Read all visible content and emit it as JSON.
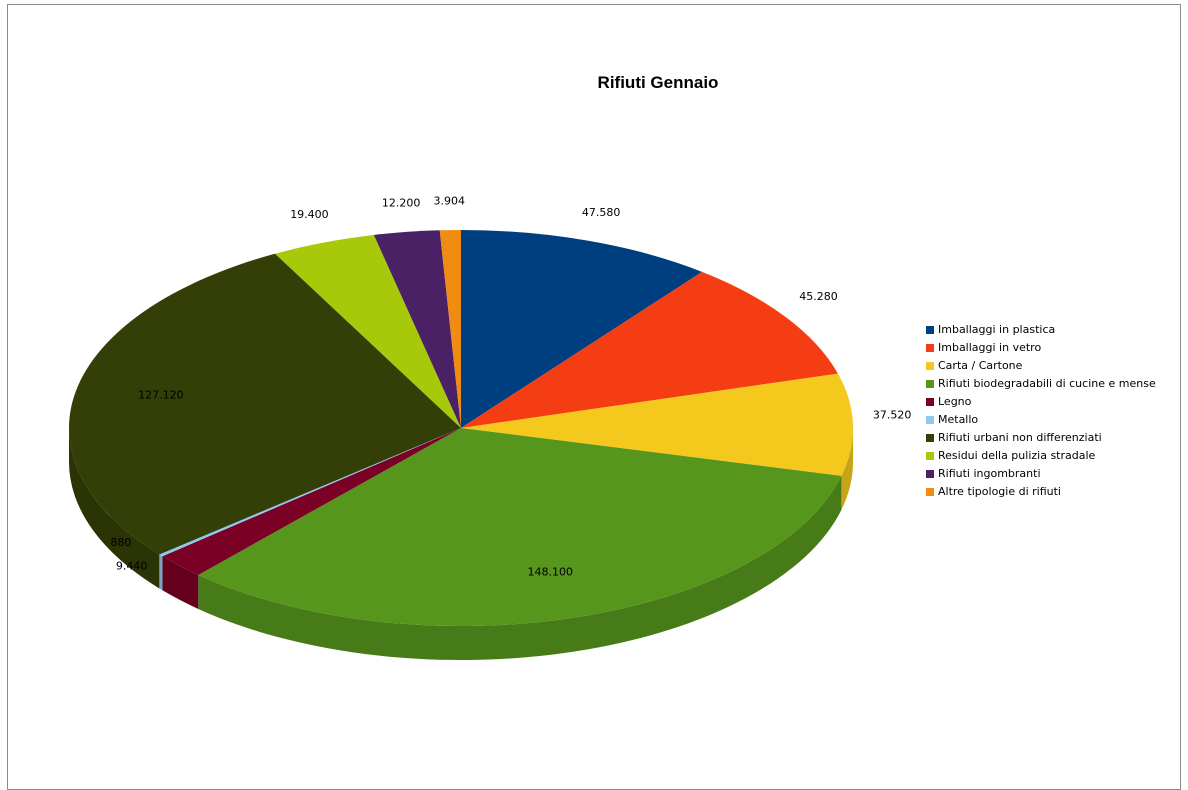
{
  "chart_data": {
    "type": "pie",
    "title": "Rifiuti Gennaio",
    "legend_position": "right",
    "slices": [
      {
        "label": "Imballaggi in plastica",
        "value": 47580,
        "value_label": "47.580",
        "color": "#003f7f"
      },
      {
        "label": "Imballaggi in vetro",
        "value": 45280,
        "value_label": "45.280",
        "color": "#f43d12"
      },
      {
        "label": "Carta / Cartone",
        "value": 37520,
        "value_label": "37.520",
        "color": "#f4c81d"
      },
      {
        "label": "Rifiuti biodegradabili di cucine e mense",
        "value": 148100,
        "value_label": "148.100",
        "color": "#57961d"
      },
      {
        "label": "Legno",
        "value": 9440,
        "value_label": "9.440",
        "color": "#7a0025"
      },
      {
        "label": "Metallo",
        "value": 880,
        "value_label": "880",
        "color": "#8fc9ef"
      },
      {
        "label": "Rifiuti urbani non differenziati",
        "value": 127120,
        "value_label": "127.120",
        "color": "#333f06"
      },
      {
        "label": "Residui della pulizia stradale",
        "value": 19400,
        "value_label": "19.400",
        "color": "#a8c80a"
      },
      {
        "label": "Rifiuti ingombranti",
        "value": 12200,
        "value_label": "12.200",
        "color": "#4b2166"
      },
      {
        "label": "Altre tipologie di rifiuti",
        "value": 3904,
        "value_label": "3.904",
        "color": "#f08c12"
      }
    ]
  }
}
